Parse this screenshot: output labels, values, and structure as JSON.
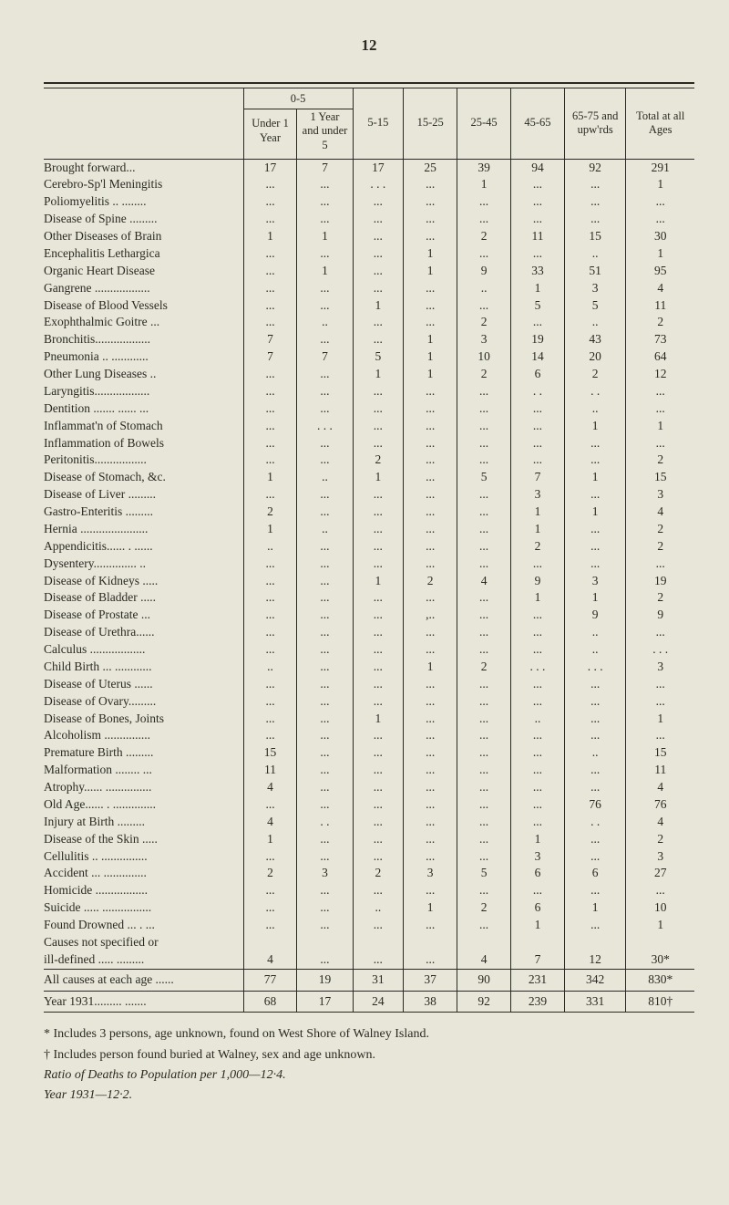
{
  "page_number": "12",
  "header": {
    "group_0_5": "0-5",
    "under_1": "Under 1 Year",
    "y1_under5": "1 Year and under 5",
    "c5_15": "5-15",
    "c15_25": "15-25",
    "c25_45": "25-45",
    "c45_65": "45-65",
    "c65_75": "65-75 and upw'rds",
    "total": "Total at all Ages"
  },
  "rows": [
    {
      "l": "Brought forward...",
      "v": [
        "17",
        "7",
        "17",
        "25",
        "39",
        "94",
        "92",
        "291"
      ]
    },
    {
      "l": "Cerebro-Sp'l Meningitis",
      "v": [
        "...",
        "...",
        ". . .",
        "...",
        "1",
        "...",
        "...",
        "1"
      ]
    },
    {
      "l": "Poliomyelitis .. ........",
      "v": [
        "...",
        "...",
        "...",
        "...",
        "...",
        "...",
        "...",
        "..."
      ]
    },
    {
      "l": "Disease of Spine .........",
      "v": [
        "...",
        "...",
        "...",
        "...",
        "...",
        "...",
        "...",
        "..."
      ]
    },
    {
      "l": "Other Diseases of Brain",
      "v": [
        "1",
        "1",
        "...",
        "...",
        "2",
        "11",
        "15",
        "30"
      ]
    },
    {
      "l": "Encephalitis Lethargica",
      "v": [
        "...",
        "...",
        "...",
        "1",
        "...",
        "...",
        "..",
        "1"
      ]
    },
    {
      "l": "Organic Heart Disease",
      "v": [
        "...",
        "1",
        "...",
        "1",
        "9",
        "33",
        "51",
        "95"
      ]
    },
    {
      "l": "Gangrene ..................",
      "v": [
        "...",
        "...",
        "...",
        "...",
        "..",
        "1",
        "3",
        "4"
      ]
    },
    {
      "l": "Disease of Blood Vessels",
      "v": [
        "...",
        "...",
        "1",
        "...",
        "...",
        "5",
        "5",
        "11"
      ]
    },
    {
      "l": "Exophthalmic Goitre ...",
      "v": [
        "...",
        "..",
        "...",
        "...",
        "2",
        "...",
        "..",
        "2"
      ]
    },
    {
      "l": "Bronchitis..................",
      "v": [
        "7",
        "...",
        "...",
        "1",
        "3",
        "19",
        "43",
        "73"
      ]
    },
    {
      "l": "Pneumonia  .. ............",
      "v": [
        "7",
        "7",
        "5",
        "1",
        "10",
        "14",
        "20",
        "64"
      ]
    },
    {
      "l": "Other Lung Diseases ..",
      "v": [
        "...",
        "...",
        "1",
        "1",
        "2",
        "6",
        "2",
        "12"
      ]
    },
    {
      "l": "Laryngitis..................",
      "v": [
        "...",
        "...",
        "...",
        "...",
        "...",
        ". .",
        ". .",
        "..."
      ]
    },
    {
      "l": "Dentition ....... ...... ...",
      "v": [
        "...",
        "...",
        "...",
        "...",
        "...",
        "...",
        "..",
        "..."
      ]
    },
    {
      "l": "Inflammat'n of Stomach",
      "v": [
        "...",
        ". . .",
        "...",
        "...",
        "...",
        "...",
        "1",
        "1"
      ]
    },
    {
      "l": "Inflammation of Bowels",
      "v": [
        "...",
        "...",
        "...",
        "...",
        "...",
        "...",
        "...",
        "..."
      ]
    },
    {
      "l": "Peritonitis.................",
      "v": [
        "...",
        "...",
        "2",
        "...",
        "...",
        "...",
        "...",
        "2"
      ]
    },
    {
      "l": "Disease of Stomach, &c.",
      "v": [
        "1",
        "..",
        "1",
        "...",
        "5",
        "7",
        "1",
        "15"
      ]
    },
    {
      "l": "Disease of Liver .........",
      "v": [
        "...",
        "...",
        "...",
        "...",
        "...",
        "3",
        "...",
        "3"
      ]
    },
    {
      "l": "Gastro-Enteritis .........",
      "v": [
        "2",
        "...",
        "...",
        "...",
        "...",
        "1",
        "1",
        "4"
      ]
    },
    {
      "l": "Hernia ......................",
      "v": [
        "1",
        "..",
        "...",
        "...",
        "...",
        "1",
        "...",
        "2"
      ]
    },
    {
      "l": "Appendicitis...... . ......",
      "v": [
        "..",
        "...",
        "...",
        "...",
        "...",
        "2",
        "...",
        "2"
      ]
    },
    {
      "l": "Dysentery.............. ..",
      "v": [
        "...",
        "...",
        "...",
        "...",
        "...",
        "...",
        "...",
        "..."
      ]
    },
    {
      "l": "Disease of Kidneys .....",
      "v": [
        "...",
        "...",
        "1",
        "2",
        "4",
        "9",
        "3",
        "19"
      ]
    },
    {
      "l": "Disease of Bladder .....",
      "v": [
        "...",
        "...",
        "...",
        "...",
        "...",
        "1",
        "1",
        "2"
      ]
    },
    {
      "l": "Disease of Prostate  ...",
      "v": [
        "...",
        "...",
        "...",
        ",..",
        "...",
        "...",
        "9",
        "9"
      ]
    },
    {
      "l": "Disease of Urethra......",
      "v": [
        "...",
        "...",
        "...",
        "...",
        "...",
        "...",
        "..",
        "..."
      ]
    },
    {
      "l": "Calculus  ..................",
      "v": [
        "...",
        "...",
        "...",
        "...",
        "...",
        "...",
        "..",
        ". . ."
      ]
    },
    {
      "l": "Child Birth ... ............",
      "v": [
        "..",
        "...",
        "...",
        "1",
        "2",
        ". . .",
        ". . .",
        "3"
      ]
    },
    {
      "l": "Disease of Uterus  ......",
      "v": [
        "...",
        "...",
        "...",
        "...",
        "...",
        "...",
        "...",
        "..."
      ]
    },
    {
      "l": "Disease of Ovary.........",
      "v": [
        "...",
        "...",
        "...",
        "...",
        "...",
        "...",
        "...",
        "..."
      ]
    },
    {
      "l": "Disease of Bones, Joints",
      "v": [
        "...",
        "...",
        "1",
        "...",
        "...",
        "..",
        "...",
        "1"
      ]
    },
    {
      "l": "Alcoholism  ...............",
      "v": [
        "...",
        "...",
        "...",
        "...",
        "...",
        "...",
        "...",
        "..."
      ]
    },
    {
      "l": "Premature Birth .........",
      "v": [
        "15",
        "...",
        "...",
        "...",
        "...",
        "...",
        "..",
        "15"
      ]
    },
    {
      "l": "Malformation  ........ ...",
      "v": [
        "11",
        "...",
        "...",
        "...",
        "...",
        "...",
        "...",
        "11"
      ]
    },
    {
      "l": "Atrophy...... ...............",
      "v": [
        "4",
        "...",
        "...",
        "...",
        "...",
        "...",
        "...",
        "4"
      ]
    },
    {
      "l": "Old Age...... . ..............",
      "v": [
        "...",
        "...",
        "...",
        "...",
        "...",
        "...",
        "76",
        "76"
      ]
    },
    {
      "l": "Injury at Birth .........",
      "v": [
        "4",
        ". .",
        "...",
        "...",
        "...",
        "...",
        ". .",
        "4"
      ]
    },
    {
      "l": "Disease of the Skin .....",
      "v": [
        "1",
        "...",
        "...",
        "...",
        "...",
        "1",
        "...",
        "2"
      ]
    },
    {
      "l": "Cellulitis  .. ...............",
      "v": [
        "...",
        "...",
        "...",
        "...",
        "...",
        "3",
        "...",
        "3"
      ]
    },
    {
      "l": "Accident  ... ..............",
      "v": [
        "2",
        "3",
        "2",
        "3",
        "5",
        "6",
        "6",
        "27"
      ]
    },
    {
      "l": "Homicide  .................",
      "v": [
        "...",
        "...",
        "...",
        "...",
        "...",
        "...",
        "...",
        "..."
      ]
    },
    {
      "l": "Suicide ..... ................",
      "v": [
        "...",
        "...",
        "..",
        "1",
        "2",
        "6",
        "1",
        "10"
      ]
    },
    {
      "l": "Found Drowned ... . ...",
      "v": [
        "...",
        "...",
        "...",
        "...",
        "...",
        "1",
        "...",
        "1"
      ]
    },
    {
      "l": "Causes not specified or",
      "v": [
        "",
        "",
        "",
        "",
        "",
        "",
        "",
        ""
      ]
    },
    {
      "l": "  ill-defined ..... .........",
      "v": [
        "4",
        "...",
        "...",
        "...",
        "4",
        "7",
        "12",
        "30*"
      ]
    }
  ],
  "summary": [
    {
      "l": "All causes at each age  ......",
      "v": [
        "77",
        "19",
        "31",
        "37",
        "90",
        "231",
        "342",
        "830*"
      ]
    },
    {
      "l": "Year 1931......... .......",
      "v": [
        "68",
        "17",
        "24",
        "38",
        "92",
        "239",
        "331",
        "810†"
      ]
    }
  ],
  "footnotes": {
    "star": "* Includes 3 persons, age unknown, found on West Shore of Walney Island.",
    "dagger": "† Includes person found buried at Walney, sex and age unknown.",
    "ratio": "Ratio of Deaths to Population per 1,000—12·4.",
    "year": "Year 1931—12·2."
  }
}
